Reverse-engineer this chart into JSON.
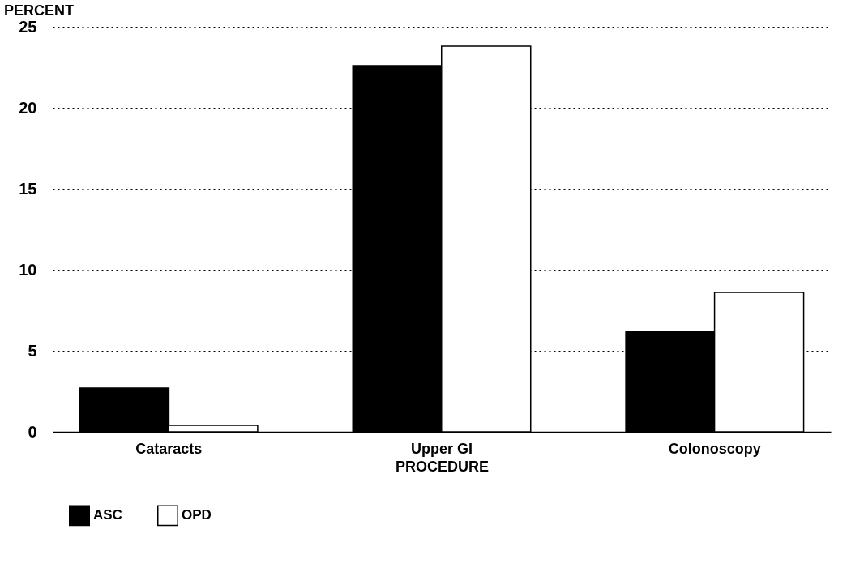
{
  "chart_data": {
    "type": "bar",
    "xlabel": "PROCEDURE",
    "ylabel": "PERCENT",
    "categories": [
      "Cataracts",
      "Upper GI",
      "Colonoscopy"
    ],
    "series": [
      {
        "name": "ASC",
        "color": "#000000",
        "values": [
          2.7,
          22.6,
          6.2
        ]
      },
      {
        "name": "OPD",
        "color": "#ffffff",
        "values": [
          0.4,
          23.8,
          8.6
        ]
      }
    ],
    "ylim": [
      0,
      25
    ],
    "yticks": [
      0,
      5,
      10,
      15,
      20,
      25
    ],
    "grid": "y",
    "legend": "bottom"
  }
}
